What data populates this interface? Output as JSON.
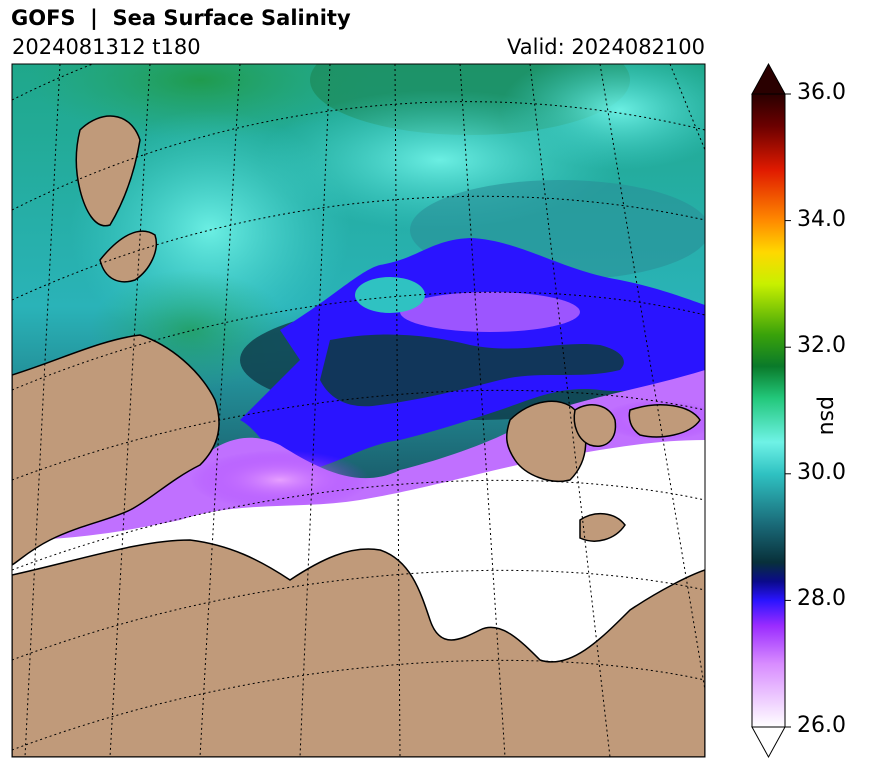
{
  "header": {
    "title": "GOFS  |  Sea Surface Salinity",
    "run": "2024081312 t180",
    "valid": "Valid: 2024082100"
  },
  "colorbar": {
    "units": "psu",
    "ticks": [
      "26.0",
      "28.0",
      "30.0",
      "32.0",
      "34.0",
      "36.0"
    ],
    "range": [
      26.0,
      36.0
    ],
    "extend": "both",
    "stops": [
      {
        "value": 26.0,
        "color": "#ffffff"
      },
      {
        "value": 27.0,
        "color": "#d88cff"
      },
      {
        "value": 27.6,
        "color": "#9a2cff"
      },
      {
        "value": 28.0,
        "color": "#2a14ff"
      },
      {
        "value": 28.3,
        "color": "#0a0a8a"
      },
      {
        "value": 28.6,
        "color": "#08303a"
      },
      {
        "value": 29.2,
        "color": "#1a6a78"
      },
      {
        "value": 30.0,
        "color": "#2fc2c2"
      },
      {
        "value": 30.5,
        "color": "#6ff2e6"
      },
      {
        "value": 31.2,
        "color": "#22c77a"
      },
      {
        "value": 31.7,
        "color": "#0a7a2a"
      },
      {
        "value": 32.2,
        "color": "#3aa20a"
      },
      {
        "value": 33.0,
        "color": "#c8f000"
      },
      {
        "value": 33.5,
        "color": "#ffd800"
      },
      {
        "value": 34.0,
        "color": "#ff8a00"
      },
      {
        "value": 34.8,
        "color": "#e01a00"
      },
      {
        "value": 35.5,
        "color": "#6a0000"
      },
      {
        "value": 36.0,
        "color": "#2a0000"
      }
    ]
  },
  "map": {
    "land_color": "#c09a7a",
    "ice_color": "#ffffff"
  }
}
